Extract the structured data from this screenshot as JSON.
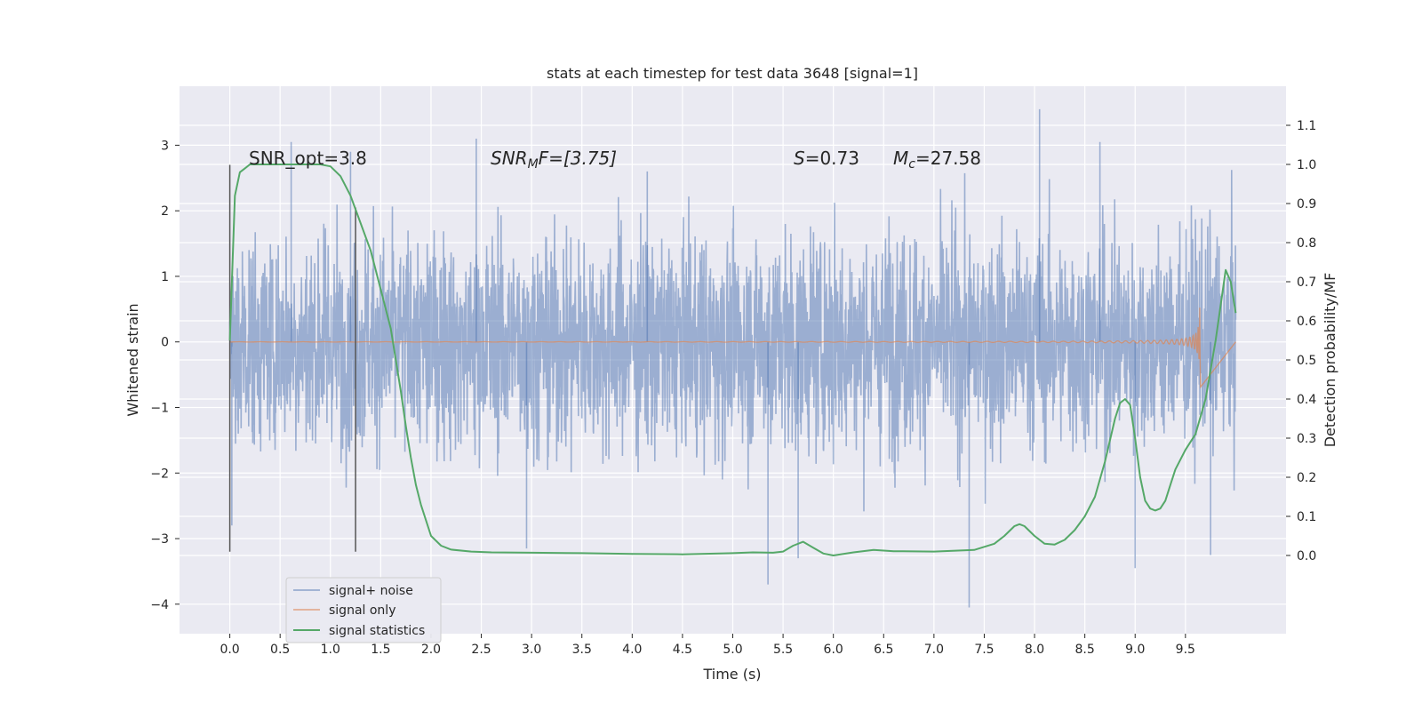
{
  "chart_data": {
    "type": "line",
    "title": "stats at each timestep for test data 3648 [signal=1]",
    "xlabel": "Time (s)",
    "ylabel_left": "Whitened strain",
    "ylabel_right": "Detection probability/MF",
    "xlim": [
      -0.5,
      10.5
    ],
    "ylim_left": [
      -4.45,
      3.9
    ],
    "ylim_right": [
      -0.2,
      1.2
    ],
    "x_ticks": [
      0.0,
      0.5,
      1.0,
      1.5,
      2.0,
      2.5,
      3.0,
      3.5,
      4.0,
      4.5,
      5.0,
      5.5,
      6.0,
      6.5,
      7.0,
      7.5,
      8.0,
      8.5,
      9.0,
      9.5
    ],
    "x_tick_labels": [
      "0.0",
      "0.5",
      "1.0",
      "1.5",
      "2.0",
      "2.5",
      "3.0",
      "3.5",
      "4.0",
      "4.5",
      "5.0",
      "5.5",
      "6.0",
      "6.5",
      "7.0",
      "7.5",
      "8.0",
      "8.5",
      "9.0",
      "9.5"
    ],
    "y_left_ticks": [
      3,
      2,
      1,
      0,
      -1,
      -2,
      -3,
      -4
    ],
    "y_left_tick_labels": [
      "3",
      "2",
      "1",
      "0",
      "−1",
      "−2",
      "−3",
      "−4"
    ],
    "y_right_ticks": [
      1.1,
      1.0,
      0.9,
      0.8,
      0.7,
      0.6,
      0.5,
      0.4,
      0.3,
      0.2,
      0.1,
      0.0
    ],
    "y_right_tick_labels": [
      "1.1",
      "1.0",
      "0.9",
      "0.8",
      "0.7",
      "0.6",
      "0.5",
      "0.4",
      "0.3",
      "0.2",
      "0.1",
      "0.0"
    ],
    "grid": true,
    "legend_position": "lower-left",
    "annotations": {
      "snr_opt": "SNR_opt=3.8",
      "snr_mf_main": "SNR",
      "snr_mf_sub": "M",
      "snr_mf_rest": "F=[3.75]",
      "s_var": "S",
      "s_val": "=0.73",
      "mc_var": "M",
      "mc_sub": "c",
      "mc_val": "=27.58"
    },
    "vlines": [
      {
        "x": 0.0,
        "y_range": [
          -3.2,
          2.7
        ]
      },
      {
        "x": 1.25,
        "y_range": [
          -3.2,
          2.05
        ]
      }
    ],
    "series": [
      {
        "name": "signal+ noise",
        "color": "#4c72b0",
        "alpha": 0.5,
        "x_range": [
          0.0,
          10.0
        ],
        "typical_amplitude": 1.8,
        "peak_max": 3.55,
        "peak_min": -4.05
      },
      {
        "name": "signal only",
        "color": "#dd8452",
        "alpha": 0.7,
        "x_range": [
          0.0,
          9.65
        ],
        "peak_amplitude": 0.8
      },
      {
        "name": "signal statistics",
        "color": "#55a868",
        "x": [
          0.0,
          0.05,
          0.1,
          0.15,
          0.2,
          0.3,
          0.5,
          0.7,
          0.9,
          1.0,
          1.1,
          1.2,
          1.3,
          1.4,
          1.5,
          1.6,
          1.7,
          1.75,
          1.8,
          1.85,
          1.9,
          1.95,
          2.0,
          2.1,
          2.2,
          2.4,
          2.6,
          3.0,
          3.5,
          4.0,
          4.5,
          5.0,
          5.2,
          5.4,
          5.5,
          5.6,
          5.7,
          5.8,
          5.9,
          6.0,
          6.2,
          6.4,
          6.6,
          7.0,
          7.4,
          7.6,
          7.7,
          7.8,
          7.85,
          7.9,
          8.0,
          8.1,
          8.2,
          8.3,
          8.4,
          8.5,
          8.6,
          8.7,
          8.8,
          8.85,
          8.9,
          8.95,
          9.0,
          9.05,
          9.1,
          9.15,
          9.2,
          9.25,
          9.3,
          9.35,
          9.4,
          9.5,
          9.6,
          9.7,
          9.8,
          9.9,
          9.95,
          10.0
        ],
        "y": [
          0.55,
          0.92,
          0.98,
          0.99,
          1.0,
          1.0,
          1.0,
          1.0,
          1.0,
          0.995,
          0.97,
          0.92,
          0.85,
          0.78,
          0.68,
          0.58,
          0.42,
          0.33,
          0.25,
          0.18,
          0.13,
          0.09,
          0.05,
          0.025,
          0.015,
          0.01,
          0.008,
          0.007,
          0.006,
          0.004,
          0.003,
          0.006,
          0.008,
          0.007,
          0.01,
          0.025,
          0.035,
          0.02,
          0.005,
          0.0,
          0.008,
          0.014,
          0.011,
          0.01,
          0.014,
          0.03,
          0.05,
          0.075,
          0.08,
          0.075,
          0.05,
          0.03,
          0.028,
          0.04,
          0.065,
          0.1,
          0.15,
          0.24,
          0.35,
          0.39,
          0.4,
          0.385,
          0.3,
          0.2,
          0.14,
          0.12,
          0.115,
          0.12,
          0.14,
          0.18,
          0.22,
          0.27,
          0.31,
          0.4,
          0.55,
          0.73,
          0.7,
          0.62
        ]
      }
    ]
  }
}
